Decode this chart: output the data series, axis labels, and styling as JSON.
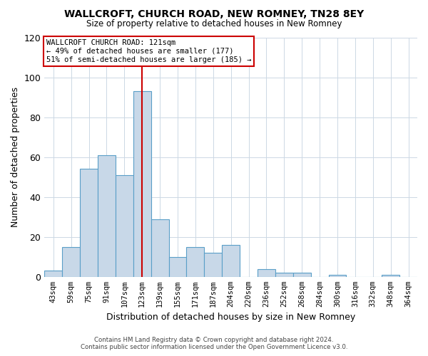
{
  "title": "WALLCROFT, CHURCH ROAD, NEW ROMNEY, TN28 8EY",
  "subtitle": "Size of property relative to detached houses in New Romney",
  "xlabel": "Distribution of detached houses by size in New Romney",
  "ylabel": "Number of detached properties",
  "bar_labels": [
    "43sqm",
    "59sqm",
    "75sqm",
    "91sqm",
    "107sqm",
    "123sqm",
    "139sqm",
    "155sqm",
    "171sqm",
    "187sqm",
    "204sqm",
    "220sqm",
    "236sqm",
    "252sqm",
    "268sqm",
    "284sqm",
    "300sqm",
    "316sqm",
    "332sqm",
    "348sqm",
    "364sqm"
  ],
  "bar_values": [
    3,
    15,
    54,
    61,
    51,
    93,
    29,
    10,
    15,
    12,
    16,
    0,
    4,
    2,
    2,
    0,
    1,
    0,
    0,
    1,
    0
  ],
  "bar_color": "#c8d8e8",
  "bar_edge_color": "#5a9fc8",
  "marker_line_x_label": "123sqm",
  "marker_line_color": "#cc0000",
  "annotation_title": "WALLCROFT CHURCH ROAD: 121sqm",
  "annotation_line1": "← 49% of detached houses are smaller (177)",
  "annotation_line2": "51% of semi-detached houses are larger (185) →",
  "annotation_box_edge_color": "#cc0000",
  "ylim": [
    0,
    120
  ],
  "yticks": [
    0,
    20,
    40,
    60,
    80,
    100,
    120
  ],
  "footnote1": "Contains HM Land Registry data © Crown copyright and database right 2024.",
  "footnote2": "Contains public sector information licensed under the Open Government Licence v3.0.",
  "background_color": "#ffffff",
  "grid_color": "#ccd8e4"
}
